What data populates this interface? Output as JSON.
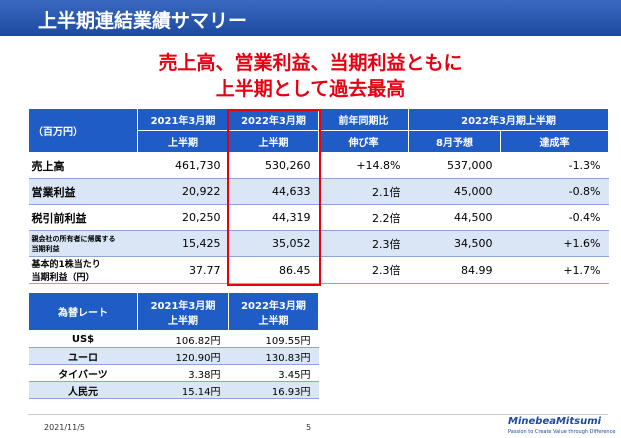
{
  "header": {
    "title": "上半期連結業績サマリー"
  },
  "headline": {
    "lines": [
      "売上高、営業利益、当期利益ともに",
      "上半期として過去最高"
    ]
  },
  "main_table": {
    "header_top": [
      "（百万円）",
      "2021年3月期",
      "2022年3月期",
      "前年同期比",
      "2022年3月期上半期"
    ],
    "header_bottom": [
      "上半期",
      "上半期",
      "伸び率",
      "8月予想",
      "達成率"
    ],
    "rows": [
      {
        "label": [
          "売上高"
        ],
        "cells": [
          "461,730",
          "530,260",
          "+14.8%",
          "537,000",
          "-1.3%"
        ]
      },
      {
        "label": [
          "営業利益"
        ],
        "cells": [
          "20,922",
          "44,633",
          "2.1倍",
          "45,000",
          "-0.8%"
        ]
      },
      {
        "label": [
          "税引前利益"
        ],
        "cells": [
          "20,250",
          "44,319",
          "2.2倍",
          "44,500",
          "-0.4%"
        ]
      },
      {
        "label": [
          "親会社の所有者に帰属する",
          "当期利益"
        ],
        "cells": [
          "15,425",
          "35,052",
          "2.3倍",
          "34,500",
          "+1.6%"
        ]
      },
      {
        "label": [
          "基本的1株当たり",
          "当期利益（円）"
        ],
        "cells": [
          "37.77",
          "86.45",
          "2.3倍",
          "84.99",
          "+1.7%"
        ]
      }
    ]
  },
  "rate_table": {
    "header": [
      "為替レート",
      [
        "2021年3月期",
        "上半期"
      ],
      [
        "2022年3月期",
        "上半期"
      ]
    ],
    "rows": [
      [
        "US$",
        "106.82円",
        "109.55円"
      ],
      [
        "ユーロ",
        "120.90円",
        "130.83円"
      ],
      [
        "タイバーツ",
        "3.38円",
        "3.45円"
      ],
      [
        "人民元",
        "15.14円",
        "16.93円"
      ]
    ]
  },
  "footer": {
    "date": "2021/11/5",
    "page": "5",
    "logo": "MinebeaMitsumi",
    "tagline": "Passion to Create Value through Difference"
  }
}
